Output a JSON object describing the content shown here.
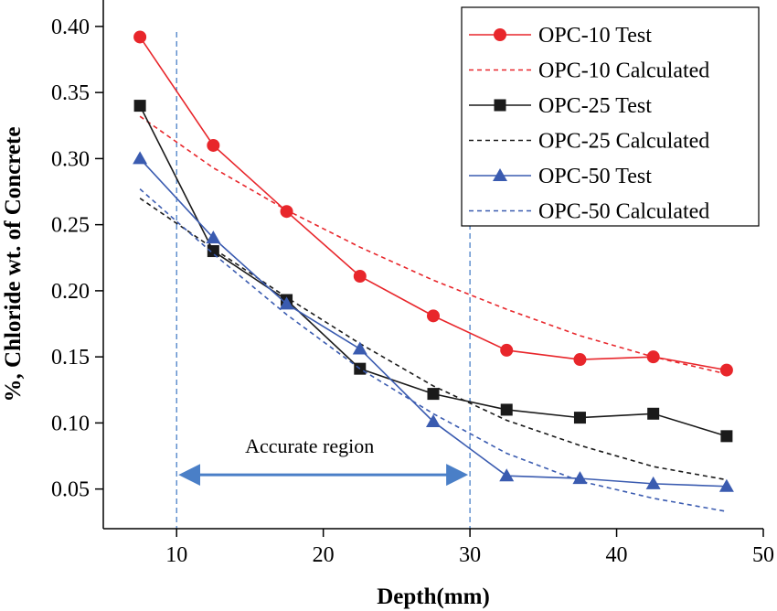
{
  "chart_data": {
    "type": "line",
    "title": "",
    "xlabel": "Depth(mm)",
    "ylabel": "%, Chloride wt. of Concrete",
    "xlim": [
      5,
      50
    ],
    "ylim": [
      0.02,
      0.42
    ],
    "xticks": [
      10,
      20,
      30,
      40,
      50
    ],
    "yticks": [
      0.05,
      0.1,
      0.15,
      0.2,
      0.25,
      0.3,
      0.35,
      0.4
    ],
    "grid": false,
    "legend_position": "top-right",
    "series": [
      {
        "name": "OPC-10 Test",
        "style": "solid",
        "marker": "circle",
        "color": "#e8262b",
        "x": [
          7.5,
          12.5,
          17.5,
          22.5,
          27.5,
          32.5,
          37.5,
          42.5,
          47.5
        ],
        "y": [
          0.392,
          0.31,
          0.26,
          0.211,
          0.181,
          0.155,
          0.148,
          0.15,
          0.14
        ]
      },
      {
        "name": "OPC-10 Calculated",
        "style": "dashed",
        "marker": "none",
        "color": "#e8262b",
        "x": [
          7.5,
          12.5,
          17.5,
          22.5,
          27.5,
          32.5,
          37.5,
          42.5,
          47.5
        ],
        "y": [
          0.332,
          0.293,
          0.261,
          0.233,
          0.208,
          0.186,
          0.166,
          0.15,
          0.137
        ]
      },
      {
        "name": "OPC-25 Test",
        "style": "solid",
        "marker": "square",
        "color": "#1a1a1a",
        "x": [
          7.5,
          12.5,
          17.5,
          22.5,
          27.5,
          32.5,
          37.5,
          42.5,
          47.5
        ],
        "y": [
          0.34,
          0.23,
          0.193,
          0.141,
          0.122,
          0.11,
          0.104,
          0.107,
          0.09
        ]
      },
      {
        "name": "OPC-25 Calculated",
        "style": "dashed",
        "marker": "none",
        "color": "#1a1a1a",
        "x": [
          7.5,
          12.5,
          17.5,
          22.5,
          27.5,
          32.5,
          37.5,
          42.5,
          47.5
        ],
        "y": [
          0.27,
          0.232,
          0.195,
          0.16,
          0.128,
          0.102,
          0.083,
          0.067,
          0.057
        ]
      },
      {
        "name": "OPC-50 Test",
        "style": "solid",
        "marker": "triangle",
        "color": "#3a5bb0",
        "x": [
          7.5,
          12.5,
          17.5,
          22.5,
          27.5,
          32.5,
          37.5,
          42.5,
          47.5
        ],
        "y": [
          0.3,
          0.24,
          0.19,
          0.156,
          0.101,
          0.06,
          0.058,
          0.054,
          0.052
        ]
      },
      {
        "name": "OPC-50 Calculated",
        "style": "dashed",
        "marker": "none",
        "color": "#3a5bb0",
        "x": [
          7.5,
          12.5,
          17.5,
          22.5,
          27.5,
          32.5,
          37.5,
          42.5,
          47.5
        ],
        "y": [
          0.277,
          0.228,
          0.182,
          0.141,
          0.107,
          0.077,
          0.056,
          0.043,
          0.033
        ]
      }
    ],
    "annotations": {
      "region_label": "Accurate region",
      "region_start": 10,
      "region_end": 30,
      "arrow_y": 0.04,
      "region_line_color": "#4a7fc7",
      "arrow_color": "#4a7fc7"
    }
  }
}
